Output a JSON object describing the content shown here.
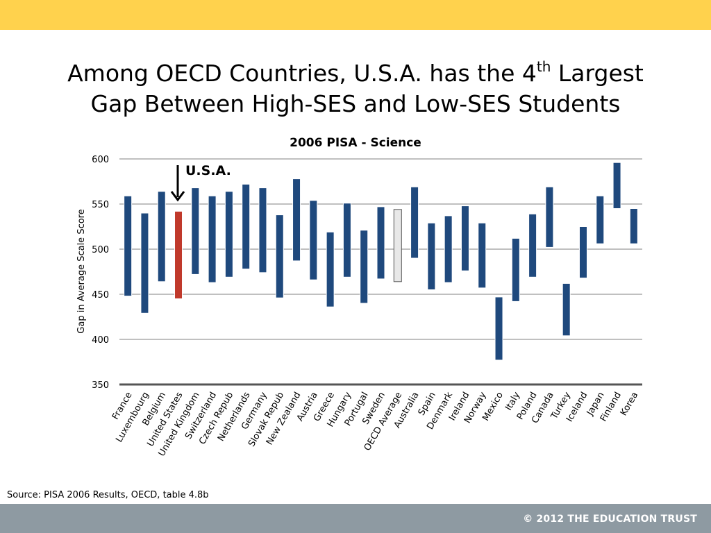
{
  "slide": {
    "title_main": "Among OECD Countries, U.S.A. has the 4",
    "title_sup": "th",
    "title_rest": " Largest",
    "title_line2": "Gap Between High-SES and Low-SES Students",
    "source": "Source: PISA 2006 Results, OECD, table 4.8b",
    "copyright": "© 2012 THE EDUCATION TRUST"
  },
  "colors": {
    "top_band": "#ffd24d",
    "bottom_band": "#8e9aa2",
    "bar_default": "#1f497d",
    "bar_highlight": "#c0392b",
    "bar_average": "#e8e8e8"
  },
  "chart_data": {
    "type": "bar",
    "subtype": "floating-range",
    "title": "2006 PISA - Science",
    "ylabel": "Gap in Average Scale Score",
    "xlabel": "",
    "ylim": [
      350,
      600
    ],
    "yticks": [
      350,
      400,
      450,
      500,
      550,
      600
    ],
    "grid": true,
    "annotation": {
      "text": "U.S.A.",
      "target": "United States"
    },
    "categories": [
      "France",
      "Luxembourg",
      "Belgium",
      "United States",
      "United Kingdom",
      "Switzerland",
      "Czech Repub",
      "Netherlands",
      "Germany",
      "Slovak Repub",
      "New Zealand",
      "Austria",
      "Greece",
      "Hungary",
      "Portugal",
      "Sweden",
      "OECD Average",
      "Australia",
      "Spain",
      "Denmark",
      "Ireland",
      "Norway",
      "Mexico",
      "Italy",
      "Poland",
      "Canada",
      "Turkey",
      "Iceland",
      "Japan",
      "Finland",
      "Korea"
    ],
    "low": [
      448,
      429,
      464,
      445,
      472,
      463,
      469,
      478,
      474,
      446,
      487,
      466,
      436,
      469,
      440,
      467,
      464,
      490,
      455,
      463,
      476,
      457,
      377,
      442,
      469,
      502,
      404,
      468,
      506,
      545,
      506
    ],
    "high": [
      559,
      540,
      564,
      542,
      568,
      559,
      564,
      572,
      568,
      538,
      578,
      554,
      519,
      551,
      521,
      547,
      544,
      569,
      529,
      537,
      548,
      529,
      447,
      512,
      539,
      569,
      462,
      525,
      559,
      596,
      545
    ],
    "highlight": "United States",
    "average": "OECD Average"
  }
}
